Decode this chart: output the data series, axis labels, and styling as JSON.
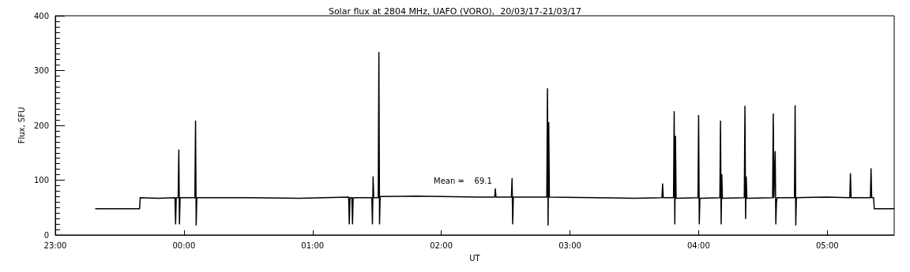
{
  "chart_data": {
    "type": "line",
    "title": "Solar flux at 2804 MHz, UAFO (VORO),  20/03/17-21/03/17",
    "xlabel": "UT",
    "ylabel": "Flux, SFU",
    "annotations": [
      "Mean =    69.1"
    ],
    "xlim": [
      "--03-20T23:00",
      "--03-21T05:31:12"
    ],
    "xticks": [
      {
        "value": "--03-20T23:00",
        "label": "23:00"
      },
      {
        "value": "--03-21T00:00",
        "label": "00:00"
      },
      {
        "value": "--03-21T01:00",
        "label": "01:00"
      },
      {
        "value": "--03-21T02:00",
        "label": "02:00"
      },
      {
        "value": "--03-21T03:00",
        "label": "03:00"
      },
      {
        "value": "--03-21T04:00",
        "label": "04:00"
      },
      {
        "value": "--03-21T05:00",
        "label": "05:00"
      }
    ],
    "ylim": [
      0,
      400
    ],
    "yticks": [
      0,
      100,
      200,
      300,
      400
    ],
    "marker": "none",
    "line_style": "solid",
    "series": [
      {
        "color": "#000000",
        "x": [
          "--03-20T23:18:36",
          "--03-20T23:39:18",
          "--03-20T23:39:36",
          "--03-20T23:48:00",
          "--03-20T23:55:48",
          "--03-20T23:56:06",
          "--03-20T23:56:24",
          "--03-20T23:57:18",
          "--03-20T23:57:36",
          "--03-20T23:57:54",
          "--03-20T23:58:12",
          "--03-21T00:05:06",
          "--03-21T00:05:24",
          "--03-21T00:05:42",
          "--03-21T00:06:00",
          "--03-21T00:30:00",
          "--03-21T00:54:00",
          "--03-21T01:16:48",
          "--03-21T01:17:06",
          "--03-21T01:17:24",
          "--03-21T01:18:18",
          "--03-21T01:18:36",
          "--03-21T01:18:54",
          "--03-21T01:27:36",
          "--03-21T01:27:54",
          "--03-21T01:28:12",
          "--03-21T01:28:30",
          "--03-21T01:30:36",
          "--03-21T01:30:54",
          "--03-21T01:31:12",
          "--03-21T01:31:30",
          "--03-21T01:48:00",
          "--03-21T02:00:00",
          "--03-21T02:18:00",
          "--03-21T02:24:54",
          "--03-21T02:25:12",
          "--03-21T02:25:30",
          "--03-21T02:32:42",
          "--03-21T02:33:00",
          "--03-21T02:33:18",
          "--03-21T02:33:36",
          "--03-21T02:49:12",
          "--03-21T02:49:30",
          "--03-21T02:49:48",
          "--03-21T02:50:06",
          "--03-21T02:50:24",
          "--03-21T03:12:00",
          "--03-21T03:30:00",
          "--03-21T03:42:54",
          "--03-21T03:43:12",
          "--03-21T03:43:30",
          "--03-21T03:48:18",
          "--03-21T03:48:36",
          "--03-21T03:48:54",
          "--03-21T03:49:12",
          "--03-21T03:49:30",
          "--03-21T03:59:42",
          "--03-21T04:00:00",
          "--03-21T04:00:18",
          "--03-21T04:00:36",
          "--03-21T04:09:54",
          "--03-21T04:10:12",
          "--03-21T04:10:30",
          "--03-21T04:10:48",
          "--03-21T04:11:06",
          "--03-21T04:21:18",
          "--03-21T04:21:36",
          "--03-21T04:21:54",
          "--03-21T04:22:12",
          "--03-21T04:22:30",
          "--03-21T04:34:30",
          "--03-21T04:34:48",
          "--03-21T04:35:06",
          "--03-21T04:35:42",
          "--03-21T04:36:00",
          "--03-21T04:36:18",
          "--03-21T04:36:36",
          "--03-21T04:44:42",
          "--03-21T04:45:00",
          "--03-21T04:45:18",
          "--03-21T04:45:36",
          "--03-21T05:00:00",
          "--03-21T05:10:30",
          "--03-21T05:10:48",
          "--03-21T05:11:06",
          "--03-21T05:20:06",
          "--03-21T05:20:24",
          "--03-21T05:20:42",
          "--03-21T05:21:36",
          "--03-21T05:21:54",
          "--03-21T05:31:12"
        ],
        "values": [
          48,
          48,
          68,
          67,
          68,
          20,
          68,
          68,
          155,
          20,
          68,
          68,
          208,
          18,
          68,
          68,
          67,
          69,
          20,
          68,
          68,
          20,
          68,
          68,
          20,
          106,
          68,
          68,
          333,
          20,
          70,
          71,
          70,
          69,
          69,
          84,
          69,
          69,
          103,
          20,
          69,
          69,
          267,
          18,
          205,
          69,
          68,
          67,
          68,
          93,
          68,
          68,
          225,
          20,
          180,
          67,
          68,
          218,
          20,
          67,
          68,
          208,
          20,
          110,
          67,
          68,
          235,
          30,
          106,
          67,
          68,
          221,
          68,
          152,
          20,
          60,
          68,
          68,
          236,
          18,
          68,
          69,
          68,
          112,
          68,
          68,
          121,
          68,
          68,
          48,
          48
        ]
      }
    ]
  }
}
